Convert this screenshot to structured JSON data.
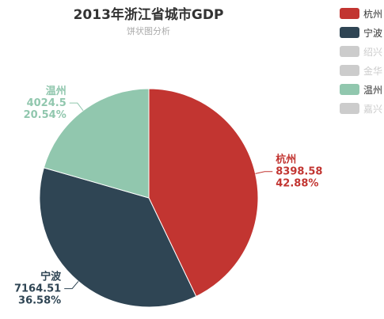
{
  "title": "2013年浙江省城市GDP",
  "subtitle": "饼状图分析",
  "inactive_color": "#cccccc",
  "legend": [
    {
      "label": "杭州",
      "color": "#c23531",
      "active": true
    },
    {
      "label": "宁波",
      "color": "#2f4554",
      "active": true
    },
    {
      "label": "绍兴",
      "color": "#cccccc",
      "active": false
    },
    {
      "label": "金华",
      "color": "#cccccc",
      "active": false
    },
    {
      "label": "温州",
      "color": "#91c7ae",
      "active": true
    },
    {
      "label": "嘉兴",
      "color": "#cccccc",
      "active": false
    }
  ],
  "chart_data": {
    "type": "pie",
    "title": "2013年浙江省城市GDP",
    "subtitle": "饼状图分析",
    "legend_position": "top-right",
    "slices": [
      {
        "name": "杭州",
        "value": 8398.58,
        "value_label": "8398.58",
        "percent_label": "42.88%",
        "color": "#c23531"
      },
      {
        "name": "宁波",
        "value": 7164.51,
        "value_label": "7164.51",
        "percent_label": "36.58%",
        "color": "#2f4554"
      },
      {
        "name": "温州",
        "value": 4024.5,
        "value_label": "4024.5",
        "percent_label": "20.54%",
        "color": "#91c7ae"
      }
    ]
  }
}
